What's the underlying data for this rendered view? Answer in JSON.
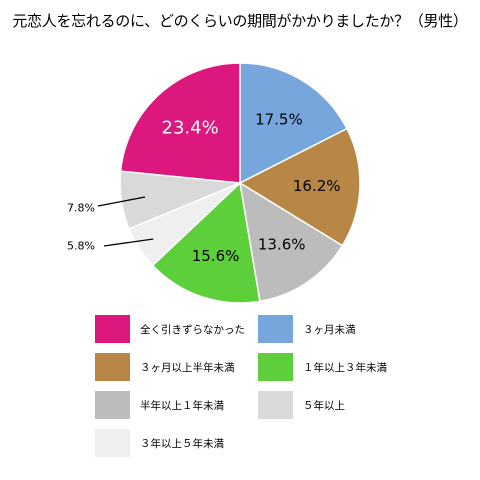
{
  "chart_data": {
    "type": "pie",
    "title": "元恋人を忘れるのに、どのくらいの期間がかかりましたか？（男性）",
    "categories": [
      "3ヶ月未満",
      "3ヶ月以上半年未満",
      "半年以上１年未満",
      "１年以上３年未満",
      "３年以上５年未満",
      "５年以上",
      "全く引きずらなかった"
    ],
    "values": [
      17.5,
      16.2,
      13.6,
      15.6,
      5.8,
      7.8,
      23.4
    ],
    "value_labels": [
      "17.5%",
      "16.2%",
      "13.6%",
      "15.6%",
      "5.8%",
      "7.8%",
      "23.4%"
    ],
    "colors": [
      "#76a6dc",
      "#b88745",
      "#bcbcbc",
      "#5ccf3a",
      "#efefef",
      "#d9d9d9",
      "#dc187e"
    ],
    "start_angle_deg": 0,
    "direction": "clockwise",
    "legend_position": "bottom"
  },
  "legend": {
    "items": [
      {
        "label": "全く引きずらなかった",
        "color": "#dc187e"
      },
      {
        "label": "３ヶ月未満",
        "color": "#76a6dc"
      },
      {
        "label": "３ヶ月以上半年未満",
        "color": "#b88745"
      },
      {
        "label": "１年以上３年未満",
        "color": "#5ccf3a"
      },
      {
        "label": "半年以上１年未満",
        "color": "#bcbcbc"
      },
      {
        "label": "５年以上",
        "color": "#d9d9d9"
      },
      {
        "label": "３年以上５年未満",
        "color": "#efefef"
      }
    ]
  }
}
